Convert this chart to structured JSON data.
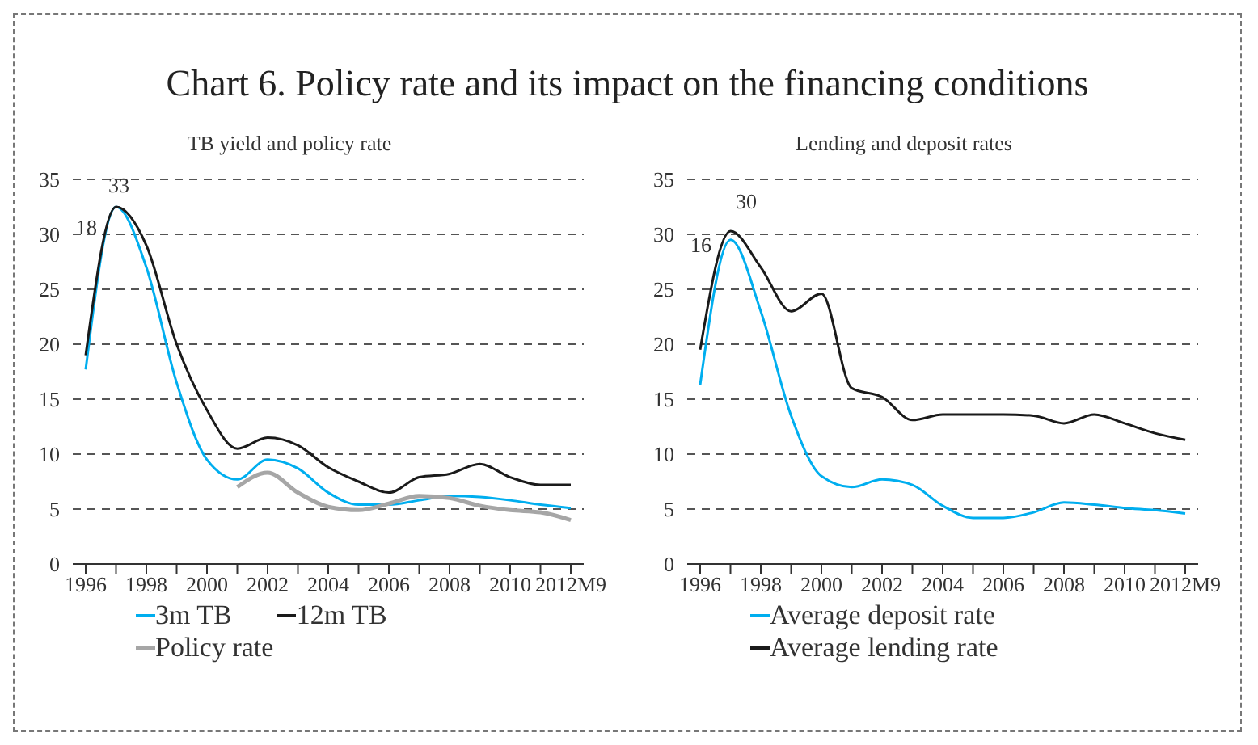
{
  "chart_data": [
    {
      "type": "line",
      "title": "Chart 6. Policy rate and its impact on the financing conditions",
      "subtitle": "TB yield and policy rate",
      "categories": [
        "1996",
        null,
        "1998",
        null,
        "2000",
        null,
        "2002",
        null,
        "2004",
        null,
        "2006",
        null,
        "2008",
        null,
        "2010",
        null,
        "2012M9"
      ],
      "series": [
        {
          "name": "3m TB",
          "color": "#00aeef",
          "values": [
            17.7,
            32.5,
            27,
            16.5,
            9.5,
            7.7,
            9.5,
            8.7,
            6.5,
            5.4,
            5.4,
            5.8,
            6.2,
            6.1,
            5.8,
            5.4,
            5.1
          ]
        },
        {
          "name": "12m TB",
          "color": "#1a1a1a",
          "values": [
            19,
            32.5,
            29,
            20,
            14,
            10.5,
            11.5,
            10.8,
            8.8,
            7.5,
            6.5,
            7.9,
            8.2,
            9.1,
            7.9,
            7.2,
            7.2
          ]
        },
        {
          "name": "Policy rate",
          "color": "#a6a6a6",
          "values": [
            null,
            null,
            null,
            null,
            null,
            7,
            8.3,
            6.5,
            5.2,
            4.9,
            5.5,
            6.2,
            6,
            5.3,
            4.9,
            4.7,
            4
          ]
        }
      ],
      "ylim": [
        0,
        35
      ],
      "yticks": [
        0,
        5,
        10,
        15,
        20,
        25,
        30,
        35
      ],
      "grid": "y",
      "legend": "bottom",
      "marker": "none",
      "line_style": "solid",
      "annotations": [
        "18",
        "33"
      ]
    },
    {
      "type": "line",
      "subtitle": "Lending and deposit rates",
      "categories": [
        "1996",
        null,
        "1998",
        null,
        "2000",
        null,
        "2002",
        null,
        "2004",
        null,
        "2006",
        null,
        "2008",
        null,
        "2010",
        null,
        "2012M9"
      ],
      "series": [
        {
          "name": "Average deposit rate",
          "color": "#00aeef",
          "values": [
            16.3,
            29.5,
            23,
            13.5,
            8,
            7,
            7.7,
            7.2,
            5.3,
            4.2,
            4.2,
            4.7,
            5.6,
            5.4,
            5.1,
            4.9,
            4.6
          ]
        },
        {
          "name": "Average lending rate",
          "color": "#1a1a1a",
          "values": [
            19.5,
            30.3,
            27,
            23,
            24.6,
            16,
            15.2,
            13.1,
            13.6,
            13.6,
            13.6,
            13.5,
            12.8,
            13.6,
            12.8,
            11.9,
            11.3
          ]
        }
      ],
      "ylim": [
        0,
        35
      ],
      "yticks": [
        0,
        5,
        10,
        15,
        20,
        25,
        30,
        35
      ],
      "grid": "y",
      "legend": "bottom",
      "marker": "none",
      "line_style": "solid",
      "annotations": [
        "16",
        "30"
      ]
    }
  ]
}
